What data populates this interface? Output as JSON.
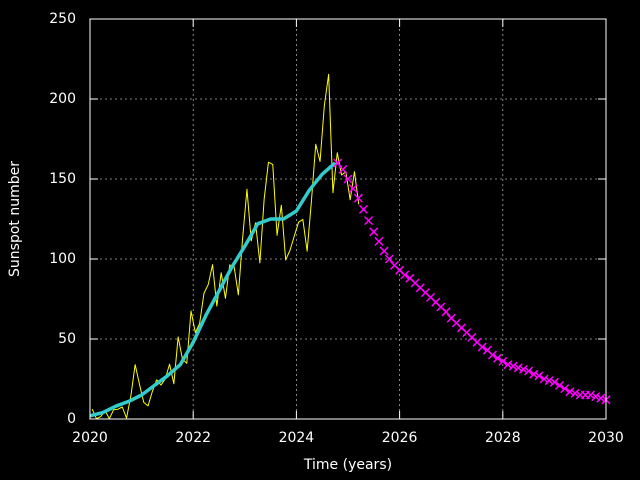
{
  "chart_data": {
    "type": "line",
    "xlabel": "Time (years)",
    "ylabel": "Sunspot number",
    "xlim": [
      2020,
      2030
    ],
    "ylim": [
      0,
      250
    ],
    "xticks": [
      2020,
      2022,
      2024,
      2026,
      2028,
      2030
    ],
    "yticks": [
      0,
      50,
      100,
      150,
      200,
      250
    ],
    "grid": true,
    "series": [
      {
        "color": "#ffff00",
        "style": "line",
        "x": [
          2020.042,
          2020.125,
          2020.208,
          2020.292,
          2020.375,
          2020.458,
          2020.542,
          2020.625,
          2020.708,
          2020.792,
          2020.875,
          2020.958,
          2021.042,
          2021.125,
          2021.208,
          2021.292,
          2021.375,
          2021.458,
          2021.542,
          2021.625,
          2021.708,
          2021.792,
          2021.875,
          2021.958,
          2022.042,
          2022.125,
          2022.208,
          2022.292,
          2022.375,
          2022.458,
          2022.542,
          2022.625,
          2022.708,
          2022.792,
          2022.875,
          2022.958,
          2023.042,
          2023.125,
          2023.208,
          2023.292,
          2023.375,
          2023.458,
          2023.542,
          2023.625,
          2023.708,
          2023.792,
          2023.875,
          2023.958,
          2024.042,
          2024.125,
          2024.208,
          2024.292,
          2024.375,
          2024.458,
          2024.542,
          2024.625,
          2024.708,
          2024.792,
          2024.875,
          2024.958,
          2025.042,
          2025.125,
          2025.208
        ],
        "values": [
          6.2,
          0.2,
          1.5,
          5.2,
          0.2,
          5.8,
          6.1,
          7.5,
          0.6,
          14.4,
          34.0,
          21.8,
          10.4,
          8.2,
          17.2,
          24.5,
          21.2,
          25.0,
          34.3,
          22.0,
          51.3,
          37.4,
          34.8,
          67.5,
          54.0,
          59.7,
          78.5,
          84.1,
          96.5,
          70.6,
          91.4,
          75.4,
          96.3,
          95.4,
          77.6,
          113.1,
          143.6,
          111.3,
          122.6,
          97.6,
          137.4,
          160.5,
          159.1,
          114.8,
          133.6,
          99.4,
          105.4,
          114.2,
          123.0,
          124.7,
          104.9,
          136.5,
          171.7,
          160.9,
          196.0,
          215.5,
          141.4,
          166.4,
          152.5,
          154.5,
          137.0,
          154.6,
          134.2
        ]
      },
      {
        "color": "#33cccc",
        "style": "thick-line",
        "x": [
          2020.0,
          2020.25,
          2020.5,
          2020.75,
          2021.0,
          2021.25,
          2021.5,
          2021.75,
          2022.0,
          2022.25,
          2022.5,
          2022.75,
          2023.0,
          2023.25,
          2023.5,
          2023.75,
          2024.0,
          2024.25,
          2024.5,
          2024.75
        ],
        "values": [
          2,
          4,
          8,
          11,
          15,
          21,
          27,
          34,
          48,
          65,
          80,
          95,
          108,
          122,
          125,
          125,
          130,
          143,
          153,
          160
        ]
      },
      {
        "color": "#ff00ff",
        "style": "markers",
        "x": [
          2024.8,
          2024.9,
          2025.0,
          2025.1,
          2025.2,
          2025.3,
          2025.4,
          2025.5,
          2025.6,
          2025.7,
          2025.8,
          2025.9,
          2026.0,
          2026.1,
          2026.2,
          2026.3,
          2026.4,
          2026.5,
          2026.6,
          2026.7,
          2026.8,
          2026.9,
          2027.0,
          2027.1,
          2027.2,
          2027.3,
          2027.4,
          2027.5,
          2027.6,
          2027.7,
          2027.8,
          2027.9,
          2028.0,
          2028.1,
          2028.2,
          2028.3,
          2028.4,
          2028.5,
          2028.6,
          2028.7,
          2028.8,
          2028.9,
          2029.0,
          2029.1,
          2029.2,
          2029.3,
          2029.4,
          2029.5,
          2029.6,
          2029.7,
          2029.8,
          2029.9,
          2030.0
        ],
        "values": [
          160,
          156,
          150,
          144,
          138,
          131,
          124,
          117,
          111,
          105,
          100,
          96,
          93,
          90,
          88,
          85,
          82,
          79,
          76,
          73,
          70,
          67,
          63,
          60,
          57,
          54,
          51,
          48,
          45,
          43,
          40,
          38,
          36,
          34,
          33,
          32,
          31,
          30,
          28,
          27,
          25,
          24,
          23,
          21,
          19,
          17,
          16,
          15,
          15,
          15,
          14,
          13,
          12
        ]
      }
    ]
  }
}
